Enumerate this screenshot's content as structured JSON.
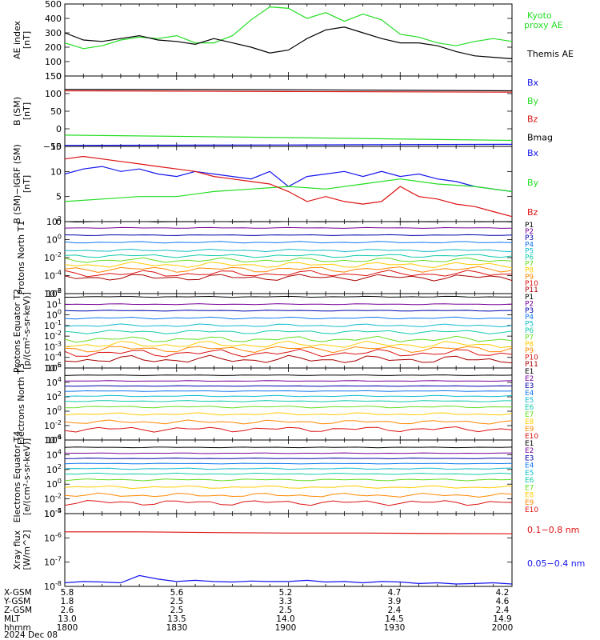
{
  "colors": {
    "green": "#22dd22",
    "black": "#000000",
    "blue": "#1515ee",
    "red": "#dd1111",
    "channels": [
      "#000000",
      "#770099",
      "#0000aa",
      "#1177ee",
      "#11bbcc",
      "#11ccaa",
      "#66dd22",
      "#ffcc00",
      "#ff8800",
      "#dd1111",
      "#aa0000",
      "#660000"
    ]
  },
  "chart_data": [
    {
      "type": "line",
      "ylabel": "AE index [nT]",
      "ylim": [
        0,
        500
      ],
      "y_ticks": [
        "0",
        "100",
        "200",
        "300",
        "400",
        "500"
      ],
      "series": [
        {
          "name": "Kyoto proxy AE",
          "color": "green",
          "x": [
            0,
            5,
            10,
            15,
            20,
            25,
            30,
            35,
            40,
            45,
            50,
            55,
            60,
            65,
            70,
            75,
            80,
            85,
            90,
            95,
            100,
            105,
            110,
            115,
            120
          ],
          "y": [
            230,
            190,
            210,
            250,
            270,
            260,
            280,
            230,
            230,
            280,
            390,
            480,
            470,
            400,
            440,
            380,
            430,
            390,
            290,
            270,
            230,
            210,
            240,
            260,
            240
          ]
        },
        {
          "name": "Themis AE",
          "color": "black",
          "x": [
            0,
            5,
            10,
            15,
            20,
            25,
            30,
            35,
            40,
            45,
            50,
            55,
            60,
            65,
            70,
            75,
            80,
            85,
            90,
            95,
            100,
            105,
            110,
            115,
            120
          ],
          "y": [
            300,
            250,
            240,
            260,
            280,
            250,
            240,
            220,
            260,
            230,
            200,
            160,
            180,
            260,
            320,
            340,
            300,
            260,
            230,
            230,
            210,
            170,
            140,
            130,
            120
          ]
        }
      ]
    },
    {
      "type": "line",
      "ylabel": "B (SM) [nT]",
      "ylim": [
        -50,
        150
      ],
      "y_ticks": [
        "−50",
        "0",
        "50",
        "100",
        "150"
      ],
      "series": [
        {
          "name": "Bx",
          "color": "blue",
          "x": [
            0,
            60,
            120
          ],
          "y": [
            -47,
            -46,
            -44
          ]
        },
        {
          "name": "By",
          "color": "green",
          "x": [
            0,
            60,
            120
          ],
          "y": [
            -18,
            -25,
            -33
          ]
        },
        {
          "name": "Bz",
          "color": "red",
          "x": [
            0,
            60,
            120
          ],
          "y": [
            108,
            106,
            104
          ]
        },
        {
          "name": "Bmag",
          "color": "black",
          "x": [
            0,
            60,
            120
          ],
          "y": [
            112,
            111,
            108
          ]
        }
      ]
    },
    {
      "type": "line",
      "ylabel": "B (SM)−IGRF (SM) [nT]",
      "ylim": [
        0,
        15
      ],
      "y_ticks": [
        "0",
        "5",
        "10",
        "15"
      ],
      "series": [
        {
          "name": "Bx",
          "color": "blue",
          "x": [
            0,
            5,
            10,
            15,
            20,
            25,
            30,
            35,
            40,
            45,
            50,
            55,
            60,
            65,
            70,
            75,
            80,
            85,
            90,
            95,
            100,
            105,
            110,
            115,
            120
          ],
          "y": [
            9.5,
            10.5,
            11,
            10,
            10.5,
            9.5,
            9,
            10,
            9.5,
            9,
            8.5,
            10,
            7,
            9,
            9.5,
            10,
            9,
            10,
            9,
            9.5,
            8.5,
            8,
            7,
            6.5,
            6
          ]
        },
        {
          "name": "By",
          "color": "green",
          "x": [
            0,
            10,
            20,
            30,
            40,
            50,
            60,
            70,
            80,
            90,
            100,
            110,
            120
          ],
          "y": [
            4,
            4.5,
            5,
            5,
            6,
            6.5,
            7,
            6.5,
            7.5,
            8.5,
            7.5,
            7,
            6
          ]
        },
        {
          "name": "Bz",
          "color": "red",
          "x": [
            0,
            5,
            10,
            15,
            20,
            25,
            30,
            35,
            40,
            45,
            50,
            55,
            60,
            65,
            70,
            75,
            80,
            85,
            90,
            95,
            100,
            105,
            110,
            115,
            120
          ],
          "y": [
            12.5,
            13,
            12.5,
            12,
            11.5,
            11,
            10.5,
            10,
            9,
            8.5,
            8,
            7.5,
            6,
            4,
            5,
            4,
            3.5,
            4,
            7,
            5,
            4.5,
            3.5,
            3,
            2,
            1
          ]
        }
      ]
    },
    {
      "type": "line",
      "ylabel": "Protons North T1",
      "log_scale": true,
      "ylim": [
        -6,
        2
      ],
      "y_tick_exps": [
        "2",
        "0",
        "-2",
        "-4",
        "-6"
      ],
      "legend": [
        "P1",
        "P2",
        "P3",
        "P4",
        "P5",
        "P6",
        "P7",
        "P8",
        "P9",
        "P10",
        "P11"
      ],
      "log_levels": [
        2,
        1.3,
        0.5,
        -0.3,
        -1.2,
        -1.8,
        -2.3,
        -2.8,
        -3.3,
        -3.8,
        -4.2
      ],
      "wiggle": [
        0.05,
        0.05,
        0.05,
        0.1,
        0.15,
        0.2,
        0.3,
        0.35,
        0.35,
        0.4,
        0.4
      ]
    },
    {
      "type": "line",
      "ylabel": "Protons Equator T2 [p/(cm²-s-sr-keV)]",
      "log_scale": true,
      "ylim": [
        -5,
        2
      ],
      "y_tick_exps": [
        "2",
        "1",
        "0",
        "-1",
        "-2",
        "-3",
        "-4",
        "-5"
      ],
      "legend": [
        "P1",
        "P2",
        "P3",
        "P4",
        "P5",
        "P6",
        "P7",
        "P8",
        "P9",
        "P10",
        "P11"
      ],
      "log_levels": [
        1.7,
        1,
        0.4,
        -0.3,
        -1,
        -1.6,
        -2.3,
        -2.8,
        -3.2,
        -3.6,
        -4.2
      ],
      "wiggle": [
        0.05,
        0.05,
        0.05,
        0.1,
        0.15,
        0.2,
        0.3,
        0.35,
        0.35,
        0.4,
        0.4
      ]
    },
    {
      "type": "line",
      "ylabel": "Electrons North T3",
      "log_scale": true,
      "ylim": [
        -4,
        6
      ],
      "y_tick_exps": [
        "6",
        "4",
        "2",
        "0",
        "-2",
        "-4"
      ],
      "legend": [
        "E1",
        "E2",
        "E3",
        "E4",
        "E5",
        "E6",
        "E7",
        "E8",
        "E9",
        "E10"
      ],
      "log_levels": [
        5,
        4.2,
        3.5,
        2.8,
        2.1,
        1.4,
        0.6,
        -0.4,
        -1.5,
        -2.5
      ],
      "wiggle": [
        0.05,
        0.05,
        0.05,
        0.05,
        0.1,
        0.1,
        0.15,
        0.2,
        0.3,
        0.4
      ]
    },
    {
      "type": "line",
      "ylabel": "Electrons Equator T4 [e/(cm²-s-sr-keV)]",
      "log_scale": true,
      "ylim": [
        -4,
        6
      ],
      "y_tick_exps": [
        "6",
        "4",
        "2",
        "0",
        "-2",
        "-4"
      ],
      "legend": [
        "E1",
        "E2",
        "E3",
        "E4",
        "E5",
        "E6",
        "E7",
        "E8",
        "E9",
        "E10"
      ],
      "log_levels": [
        5,
        4.2,
        3.5,
        2.8,
        2.1,
        1.4,
        0.6,
        -0.4,
        -1.5,
        -2.5
      ],
      "wiggle": [
        0.05,
        0.05,
        0.05,
        0.05,
        0.1,
        0.1,
        0.15,
        0.2,
        0.3,
        0.4
      ]
    },
    {
      "type": "line",
      "ylabel": "Xray flux [W/m^2]",
      "log_scale": true,
      "ylim": [
        -8,
        -5
      ],
      "y_tick_exps": [
        "-5",
        "-6",
        "-7",
        "-8"
      ],
      "series": [
        {
          "name": "0.1−0.8 nm",
          "color": "red",
          "x": [
            0,
            20,
            40,
            60,
            80,
            100,
            120
          ],
          "y_log": [
            -5.75,
            -5.75,
            -5.78,
            -5.8,
            -5.8,
            -5.82,
            -5.83
          ]
        },
        {
          "name": "0.05−0.4 nm",
          "color": "blue",
          "x": [
            0,
            5,
            10,
            15,
            20,
            25,
            30,
            35,
            40,
            45,
            50,
            55,
            60,
            65,
            70,
            75,
            80,
            85,
            90,
            95,
            100,
            105,
            110,
            115,
            120
          ],
          "y_log": [
            -7.85,
            -7.8,
            -7.82,
            -7.85,
            -7.55,
            -7.7,
            -7.8,
            -7.75,
            -7.8,
            -7.82,
            -7.78,
            -7.8,
            -7.8,
            -7.75,
            -7.82,
            -7.8,
            -7.85,
            -7.8,
            -7.82,
            -7.88,
            -7.85,
            -7.9,
            -7.88,
            -7.85,
            -7.9
          ]
        }
      ]
    }
  ],
  "footer": {
    "rows": [
      {
        "label": "X-GSM",
        "values": [
          "5.8",
          "5.6",
          "5.2",
          "4.7",
          "4.2"
        ]
      },
      {
        "label": "Y-GSM",
        "values": [
          "1.8",
          "2.5",
          "3.3",
          "3.9",
          "4.6"
        ]
      },
      {
        "label": "Z-GSM",
        "values": [
          "2.6",
          "2.5",
          "2.5",
          "2.4",
          "2.4"
        ]
      },
      {
        "label": "MLT",
        "values": [
          "13.0",
          "13.5",
          "14.0",
          "14.5",
          "14.9"
        ]
      },
      {
        "label": "hhmm",
        "values": [
          "1800",
          "1830",
          "1900",
          "1930",
          "2000"
        ]
      }
    ],
    "date": "2024 Dec 08"
  }
}
